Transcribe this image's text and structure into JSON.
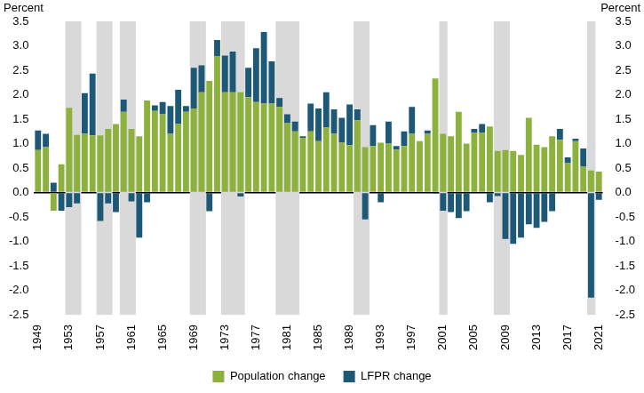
{
  "chart_data": {
    "type": "bar",
    "stacked": true,
    "ylabel": "Percent",
    "y2label": "Percent",
    "categories": [
      "1949",
      null,
      null,
      null,
      "1953",
      null,
      null,
      null,
      "1957",
      null,
      null,
      null,
      "1961",
      null,
      null,
      null,
      "1965",
      null,
      null,
      null,
      "1969",
      null,
      null,
      null,
      "1973",
      null,
      null,
      null,
      "1977",
      null,
      null,
      null,
      "1981",
      null,
      null,
      null,
      "1985",
      null,
      null,
      null,
      "1989",
      null,
      null,
      null,
      "1993",
      null,
      null,
      null,
      "1997",
      null,
      null,
      null,
      "2001",
      null,
      null,
      null,
      "2005",
      null,
      null,
      null,
      "2009",
      null,
      null,
      null,
      "2013",
      null,
      null,
      null,
      "2017",
      null,
      null,
      null,
      "2021"
    ],
    "series": [
      {
        "name": "Population change",
        "color": "#8cb23d",
        "values": [
          0.87,
          0.93,
          -0.37,
          0.58,
          1.73,
          1.18,
          1.2,
          1.17,
          1.17,
          1.3,
          1.4,
          1.65,
          1.3,
          1.15,
          1.88,
          1.67,
          1.6,
          1.2,
          1.4,
          1.65,
          1.72,
          2.05,
          2.28,
          2.78,
          2.05,
          2.05,
          2.05,
          1.95,
          1.85,
          1.82,
          1.82,
          1.75,
          1.42,
          1.25,
          1.12,
          1.25,
          1.05,
          1.33,
          1.2,
          1.02,
          0.97,
          1.48,
          0.93,
          0.95,
          1.02,
          1.0,
          0.88,
          0.95,
          1.2,
          1.05,
          1.2,
          2.33,
          1.2,
          1.15,
          1.65,
          1.0,
          1.22,
          1.22,
          1.35,
          0.85,
          0.87,
          0.85,
          0.77,
          1.53,
          0.98,
          0.93,
          1.15,
          1.08,
          0.6,
          1.05,
          0.53,
          0.45,
          0.43
        ]
      },
      {
        "name": "LFPR change",
        "color": "#1d5877",
        "values": [
          0.4,
          0.27,
          0.2,
          -0.37,
          -0.3,
          -0.22,
          0.83,
          1.26,
          -0.58,
          -0.22,
          -0.4,
          0.25,
          -0.18,
          -0.92,
          -0.2,
          0.11,
          0.25,
          0.57,
          0.7,
          0.12,
          0.83,
          0.55,
          -0.38,
          0.34,
          0.75,
          0.83,
          -0.08,
          0.6,
          1.1,
          1.46,
          0.86,
          0.18,
          0.18,
          0.2,
          0.03,
          0.57,
          0.67,
          0.72,
          0.5,
          0.51,
          0.83,
          0.22,
          -0.55,
          0.43,
          -0.2,
          0.45,
          0.07,
          0.3,
          0.55,
          0.0,
          0.07,
          -0.02,
          -0.37,
          -0.4,
          -0.52,
          -0.38,
          0.08,
          0.18,
          -0.2,
          -0.07,
          -0.95,
          -1.05,
          -0.92,
          -0.65,
          -0.72,
          -0.6,
          -0.38,
          0.22,
          0.12,
          0.05,
          0.37,
          -2.15,
          -0.15
        ]
      }
    ],
    "recession_shading": [
      false,
      false,
      false,
      false,
      true,
      true,
      false,
      false,
      true,
      true,
      false,
      true,
      true,
      false,
      false,
      false,
      false,
      false,
      false,
      false,
      true,
      true,
      false,
      false,
      true,
      true,
      true,
      false,
      false,
      false,
      false,
      true,
      true,
      true,
      false,
      false,
      false,
      false,
      false,
      false,
      false,
      true,
      true,
      false,
      false,
      false,
      false,
      false,
      false,
      false,
      false,
      false,
      true,
      false,
      false,
      false,
      false,
      false,
      false,
      true,
      true,
      false,
      false,
      false,
      false,
      false,
      false,
      false,
      false,
      false,
      false,
      true,
      false
    ],
    "ylim": [
      -2.5,
      3.5
    ],
    "yticks": [
      -2.5,
      {
        "value": -2,
        "label": "-2.0"
      },
      -1.5,
      {
        "value": -1,
        "label": "-1.0"
      },
      -0.5,
      {
        "value": 0,
        "label": "0.0"
      },
      0.5,
      {
        "value": 1,
        "label": "1.0"
      },
      1.5,
      {
        "value": 2,
        "label": "2.0"
      },
      2.5,
      {
        "value": 3,
        "label": "3.0"
      },
      3.5
    ],
    "y2lim": [
      -2.5,
      3.5
    ],
    "y2ticks": [
      -2.5,
      {
        "value": -2,
        "label": "-2.0"
      },
      -1.5,
      {
        "value": -1,
        "label": "-1.0"
      },
      -0.5,
      {
        "value": 0,
        "label": "0.0"
      },
      0.5,
      {
        "value": 1,
        "label": "1.0"
      },
      1.5,
      {
        "value": 2,
        "label": "2.0"
      },
      2.5,
      {
        "value": 3,
        "label": "3.0"
      },
      3.5
    ],
    "grid": false,
    "legend": "bottom"
  }
}
